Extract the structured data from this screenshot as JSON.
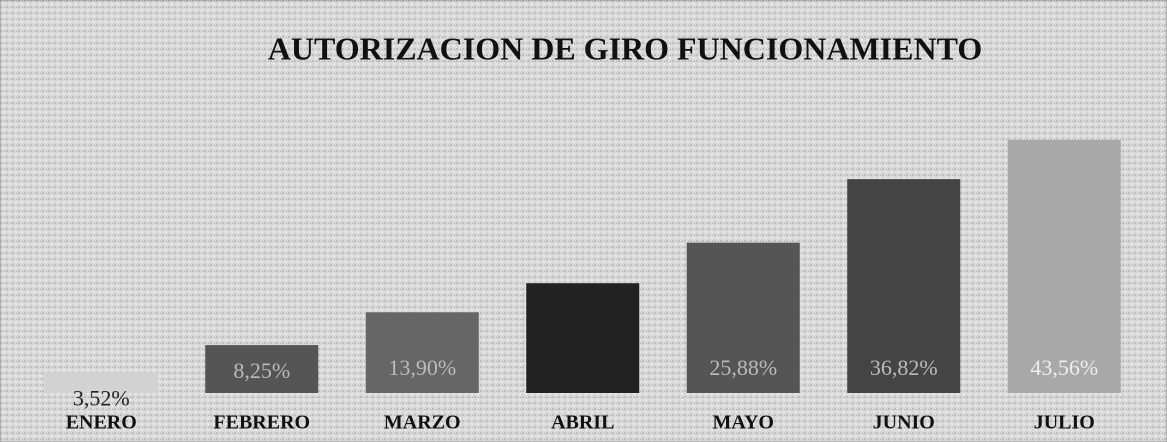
{
  "chart_data": {
    "type": "bar",
    "title": "AUTORIZACION DE GIRO FUNCIONAMIENTO",
    "categories": [
      "ENERO",
      "FEBRERO",
      "MARZO",
      "ABRIL",
      "MAYO",
      "JUNIO",
      "JULIO"
    ],
    "values": [
      3.52,
      8.25,
      13.9,
      18.9,
      25.88,
      36.82,
      43.56
    ],
    "value_labels": [
      "3,52%",
      "8,25%",
      "13,90%",
      null,
      "25,88%",
      "36,82%",
      "43,56%"
    ],
    "colors": [
      "#d2d2d2",
      "#555555",
      "#666666",
      "#222222",
      "#555555",
      "#444444",
      "#a8a8a8"
    ],
    "label_colors": [
      "#222222",
      "#bbbbbb",
      "#bbbbbb",
      "#bbbbbb",
      "#bbbbbb",
      "#bbbbbb",
      "#eeeeee"
    ],
    "grid": false
  }
}
